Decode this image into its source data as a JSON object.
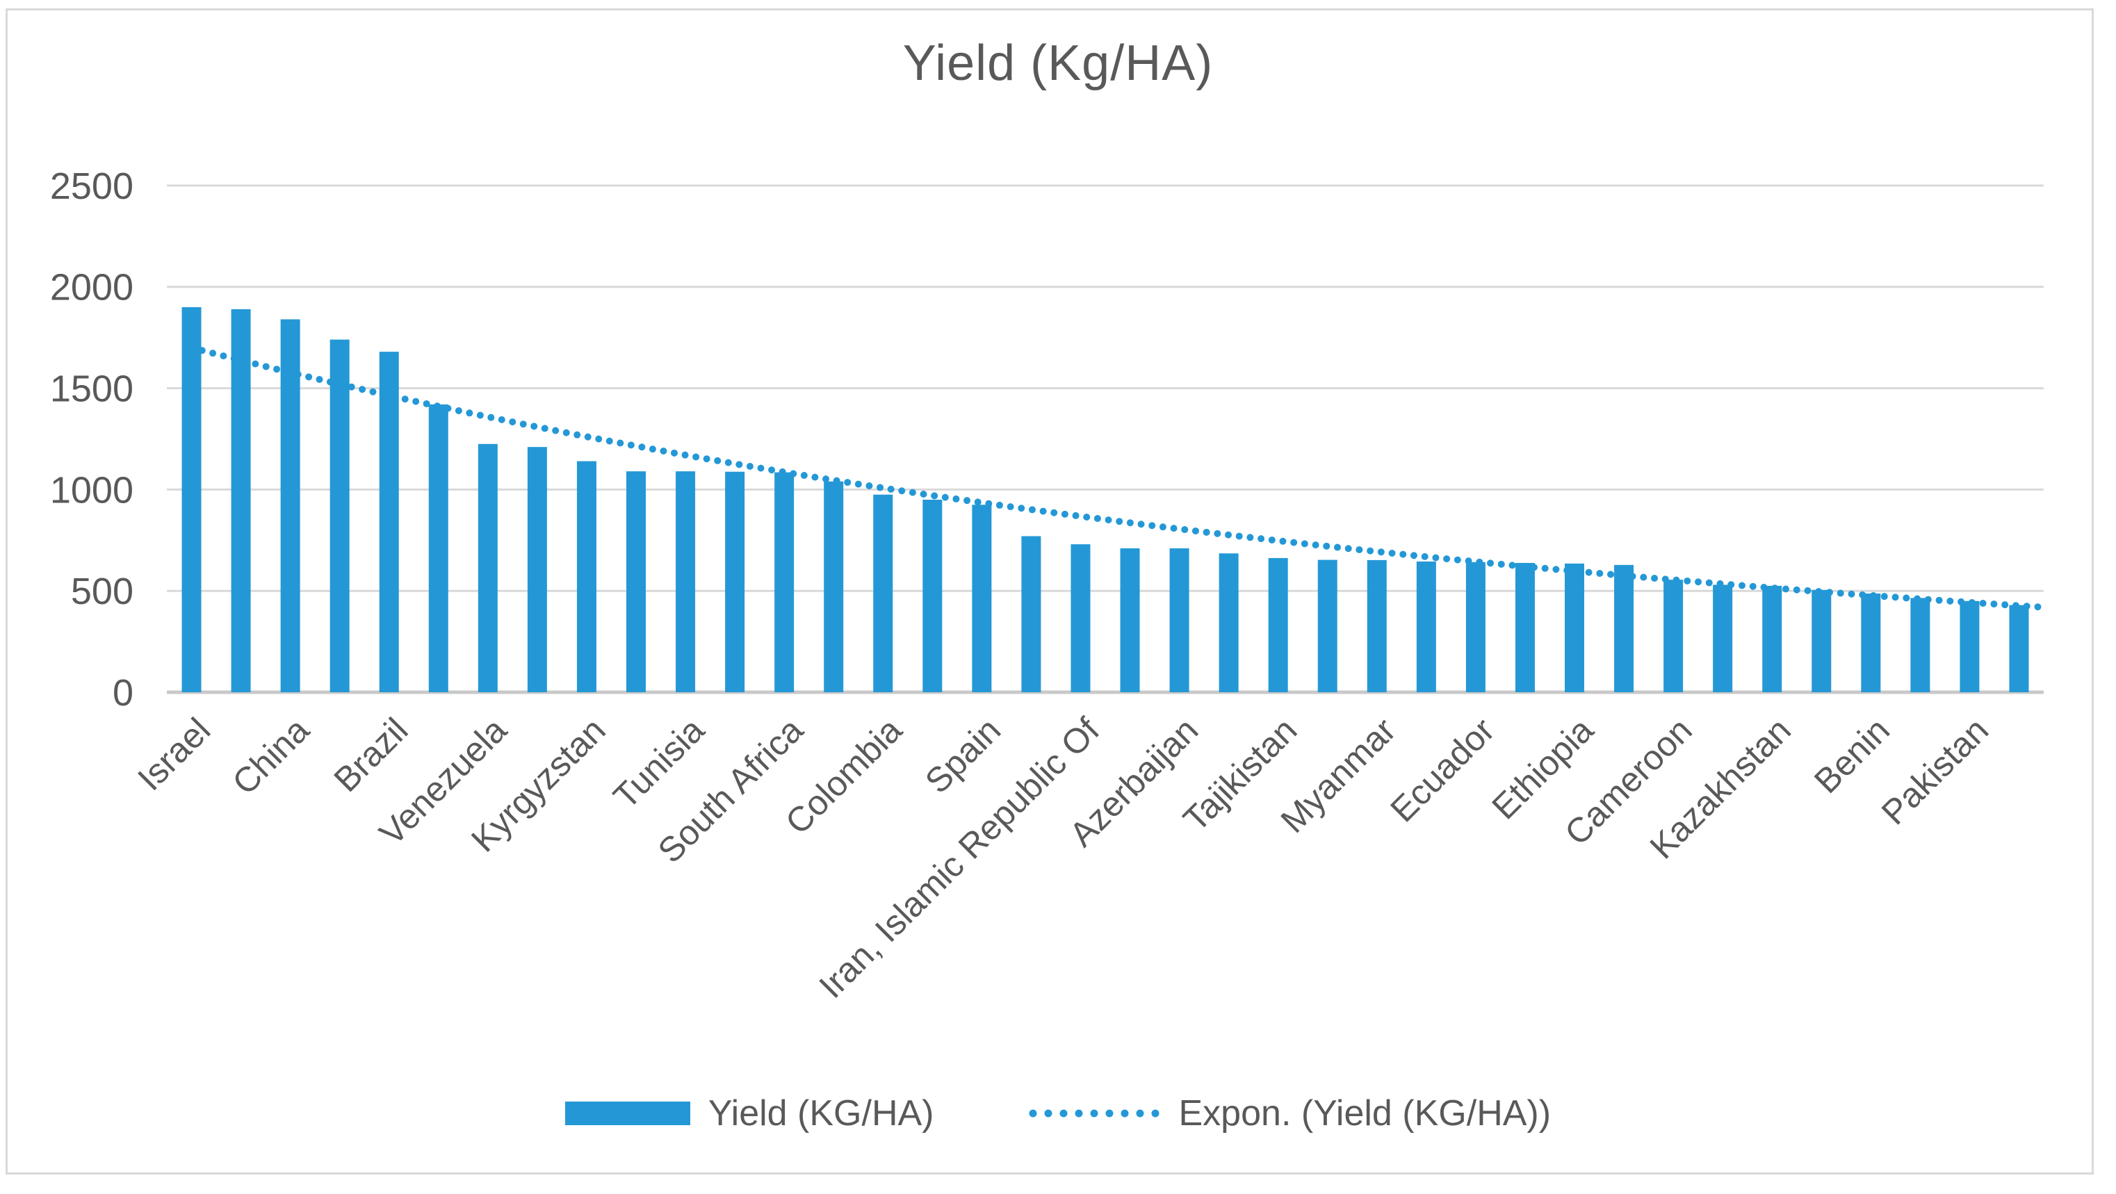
{
  "chart_data": {
    "type": "bar",
    "title": "Yield (Kg/HA)",
    "xlabel": "",
    "ylabel": "",
    "ylim": [
      0,
      2500
    ],
    "y_ticks": [
      0,
      500,
      1000,
      1500,
      2000,
      2500
    ],
    "grid": true,
    "legend_position": "bottom",
    "x_tick_labels": [
      "Israel",
      "China",
      "Brazil",
      "Venezuela",
      "Kyrgyzstan",
      "Tunisia",
      "South Africa",
      "Colombia",
      "Spain",
      "Iran, Islamic Republic Of",
      "Azerbaijan",
      "Tajikistan",
      "Myanmar",
      "Ecuador",
      "Ethiopia",
      "Cameroon",
      "Kazakhstan",
      "Benin",
      "Pakistan"
    ],
    "x_label_every": 2,
    "series": [
      {
        "name": "Yield (KG/HA)",
        "values": [
          1900,
          1890,
          1840,
          1740,
          1680,
          1420,
          1225,
          1210,
          1140,
          1090,
          1090,
          1088,
          1085,
          1040,
          975,
          950,
          925,
          770,
          730,
          710,
          710,
          685,
          662,
          653,
          652,
          645,
          642,
          638,
          635,
          628,
          555,
          530,
          525,
          505,
          487,
          465,
          450,
          430
        ]
      }
    ],
    "trendline": {
      "type": "exponential",
      "name": "Expon. (Yield (KG/HA))",
      "start_value": 1700,
      "end_value": 418
    }
  },
  "legend": {
    "series_label": "Yield (KG/HA)",
    "trend_label": "Expon. (Yield (KG/HA))"
  },
  "colors": {
    "accent": "#2498D6",
    "text": "#595959",
    "gridline": "#D9D9D9",
    "axis_line": "#C8C8C8",
    "border": "#D9D9D9"
  }
}
